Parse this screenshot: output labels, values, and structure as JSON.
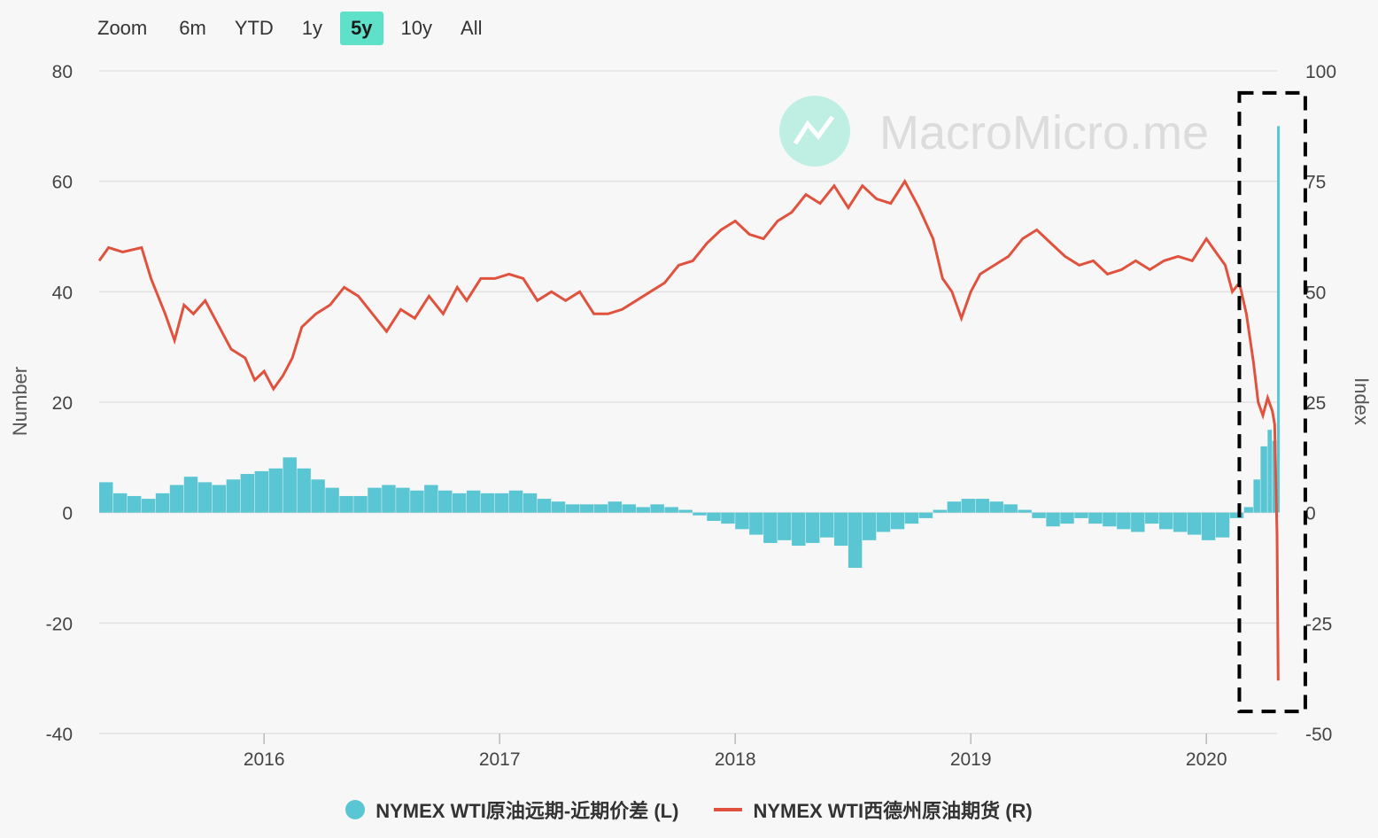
{
  "zoom": {
    "label": "Zoom",
    "buttons": [
      "6m",
      "YTD",
      "1y",
      "5y",
      "10y",
      "All"
    ],
    "active": "5y"
  },
  "watermark": "MacroMicro.me",
  "colors": {
    "bars": "#5bc6d3",
    "line": "#e0523d",
    "grid": "#e2e2e2",
    "watermark_icon": "#bfeee3"
  },
  "legend": [
    {
      "name": "NYMEX WTI原油远期-近期价差 (L)",
      "marker": "dot"
    },
    {
      "name": "NYMEX WTI西德州原油期货 (R)",
      "marker": "line"
    }
  ],
  "chart_data": {
    "type": "bar+line",
    "title": "",
    "ylabel_left": "Number",
    "ylabel_right": "Index",
    "ylim_left": [
      -40,
      80
    ],
    "ylim_right": [
      -50,
      100
    ],
    "yticks_left": [
      "80",
      "60",
      "40",
      "20",
      "0",
      "-20",
      "-40"
    ],
    "yticks_right": [
      "100",
      "75",
      "50",
      "25",
      "0",
      "-25",
      "-50"
    ],
    "xlim": [
      2015.3,
      2020.3
    ],
    "xticks": [
      {
        "label": "2016",
        "value": 2016
      },
      {
        "label": "2017",
        "value": 2017
      },
      {
        "label": "2018",
        "value": 2018
      },
      {
        "label": "2019",
        "value": 2019
      },
      {
        "label": "2020",
        "value": 2020
      }
    ],
    "grid": true,
    "legend_position": "bottom",
    "highlight_box": {
      "x_range": [
        2020.14,
        2020.42
      ],
      "y_right_range": [
        -45,
        95
      ]
    },
    "series": [
      {
        "name": "NYMEX WTI原油远期-近期价差 (L)",
        "kind": "bar",
        "axis": "left",
        "x": [
          2015.3,
          2015.36,
          2015.42,
          2015.48,
          2015.54,
          2015.6,
          2015.66,
          2015.72,
          2015.78,
          2015.84,
          2015.9,
          2015.96,
          2016.02,
          2016.08,
          2016.14,
          2016.2,
          2016.26,
          2016.32,
          2016.38,
          2016.44,
          2016.5,
          2016.56,
          2016.62,
          2016.68,
          2016.74,
          2016.8,
          2016.86,
          2016.92,
          2016.98,
          2017.04,
          2017.1,
          2017.16,
          2017.22,
          2017.28,
          2017.34,
          2017.4,
          2017.46,
          2017.52,
          2017.58,
          2017.64,
          2017.7,
          2017.76,
          2017.82,
          2017.88,
          2017.94,
          2018.0,
          2018.06,
          2018.12,
          2018.18,
          2018.24,
          2018.3,
          2018.36,
          2018.42,
          2018.48,
          2018.54,
          2018.6,
          2018.66,
          2018.72,
          2018.78,
          2018.84,
          2018.9,
          2018.96,
          2019.02,
          2019.08,
          2019.14,
          2019.2,
          2019.26,
          2019.32,
          2019.38,
          2019.44,
          2019.5,
          2019.56,
          2019.62,
          2019.68,
          2019.74,
          2019.8,
          2019.86,
          2019.92,
          2019.98,
          2020.04,
          2020.1,
          2020.16,
          2020.2,
          2020.23,
          2020.26,
          2020.28,
          2020.3
        ],
        "values": [
          5.5,
          3.5,
          3,
          2.5,
          3.5,
          5,
          6.5,
          5.5,
          5,
          6,
          7,
          7.5,
          8,
          10,
          8,
          6,
          4.5,
          3,
          3,
          4.5,
          5,
          4.5,
          4,
          5,
          4,
          3.5,
          4,
          3.5,
          3.5,
          4,
          3.5,
          2.5,
          2,
          1.5,
          1.5,
          1.5,
          2,
          1.5,
          1,
          1.5,
          1,
          0.5,
          -0.5,
          -1.5,
          -2,
          -3,
          -4,
          -5.5,
          -5,
          -6,
          -5.5,
          -4.5,
          -6,
          -10,
          -5,
          -3.5,
          -3,
          -2,
          -1,
          0.5,
          2,
          2.5,
          2.5,
          2,
          1.5,
          0.5,
          -1,
          -2.5,
          -2,
          -1,
          -2,
          -2.5,
          -3,
          -3.5,
          -2,
          -3,
          -3.5,
          -4,
          -5,
          -4.5,
          -1,
          1,
          6,
          12,
          15,
          13,
          70
        ]
      },
      {
        "name": "NYMEX WTI西德州原油期货 (R)",
        "kind": "line",
        "axis": "right",
        "x": [
          2015.3,
          2015.34,
          2015.4,
          2015.48,
          2015.52,
          2015.58,
          2015.62,
          2015.66,
          2015.7,
          2015.75,
          2015.8,
          2015.86,
          2015.92,
          2015.96,
          2016.0,
          2016.04,
          2016.08,
          2016.12,
          2016.16,
          2016.22,
          2016.28,
          2016.34,
          2016.4,
          2016.46,
          2016.52,
          2016.58,
          2016.64,
          2016.7,
          2016.76,
          2016.82,
          2016.86,
          2016.92,
          2016.98,
          2017.04,
          2017.1,
          2017.16,
          2017.22,
          2017.28,
          2017.34,
          2017.4,
          2017.46,
          2017.52,
          2017.58,
          2017.64,
          2017.7,
          2017.76,
          2017.82,
          2017.88,
          2017.94,
          2018.0,
          2018.06,
          2018.12,
          2018.18,
          2018.24,
          2018.3,
          2018.36,
          2018.42,
          2018.48,
          2018.54,
          2018.6,
          2018.66,
          2018.72,
          2018.78,
          2018.84,
          2018.88,
          2018.92,
          2018.96,
          2019.0,
          2019.04,
          2019.1,
          2019.16,
          2019.22,
          2019.28,
          2019.34,
          2019.4,
          2019.46,
          2019.52,
          2019.58,
          2019.64,
          2019.7,
          2019.76,
          2019.82,
          2019.88,
          2019.94,
          2020.0,
          2020.04,
          2020.08,
          2020.11,
          2020.14,
          2020.17,
          2020.2,
          2020.22,
          2020.24,
          2020.26,
          2020.28,
          2020.29,
          2020.3,
          2020.305
        ],
        "values": [
          57,
          60,
          59,
          60,
          53,
          45,
          39,
          47,
          45,
          48,
          43,
          37,
          35,
          30,
          32,
          28,
          31,
          35,
          42,
          45,
          47,
          51,
          49,
          45,
          41,
          46,
          44,
          49,
          45,
          51,
          48,
          53,
          53,
          54,
          53,
          48,
          50,
          48,
          50,
          45,
          45,
          46,
          48,
          50,
          52,
          56,
          57,
          61,
          64,
          66,
          63,
          62,
          66,
          68,
          72,
          70,
          74,
          69,
          74,
          71,
          70,
          75,
          69,
          62,
          53,
          50,
          44,
          50,
          54,
          56,
          58,
          62,
          64,
          61,
          58,
          56,
          57,
          54,
          55,
          57,
          55,
          57,
          58,
          57,
          62,
          59,
          56,
          50,
          52,
          45,
          34,
          25,
          22,
          26,
          23,
          20,
          -5,
          -38
        ]
      }
    ]
  }
}
